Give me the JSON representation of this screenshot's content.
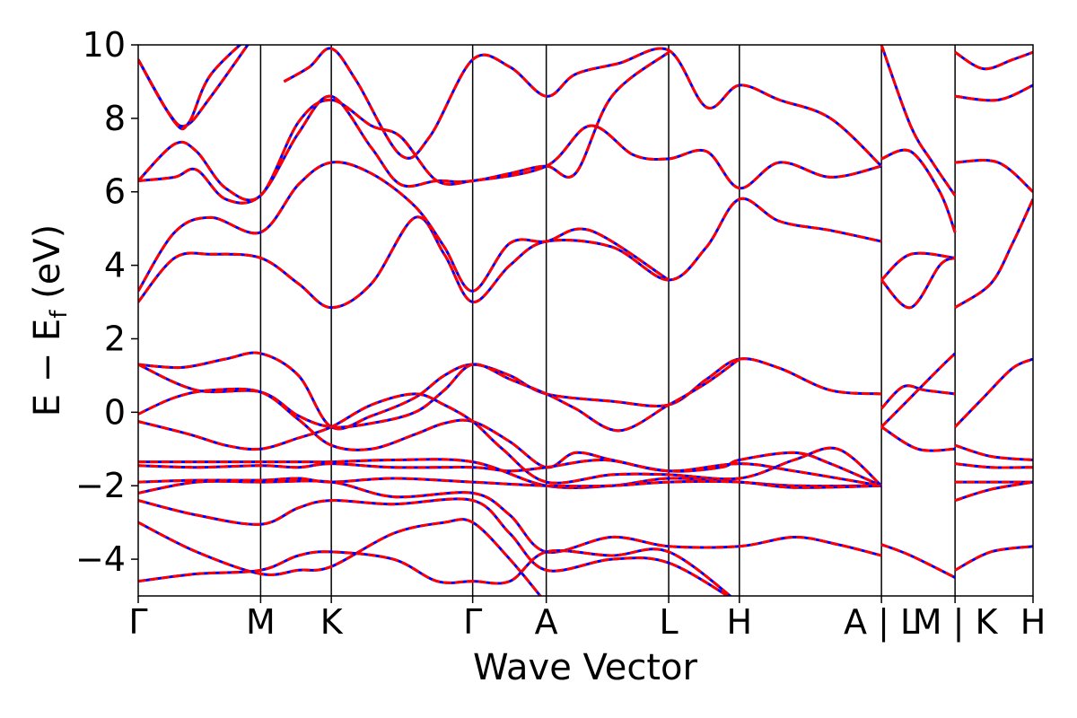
{
  "chart_data": {
    "type": "line",
    "title": "",
    "xlabel": "Wave Vector",
    "ylabel_main": "E − E",
    "ylabel_sub": "f",
    "ylabel_unit": " (eV)",
    "ylim": [
      -5,
      10
    ],
    "yticks": [
      {
        "value": -4,
        "label": "−4"
      },
      {
        "value": -2,
        "label": "−2"
      },
      {
        "value": 0,
        "label": "0"
      },
      {
        "value": 2,
        "label": "2"
      },
      {
        "value": 4,
        "label": "4"
      },
      {
        "value": 6,
        "label": "6"
      },
      {
        "value": 8,
        "label": "8"
      },
      {
        "value": 10,
        "label": "10"
      }
    ],
    "xlim": [
      0,
      12.28
    ],
    "kpath_ticks": [
      {
        "x": 0.0,
        "label": "Γ"
      },
      {
        "x": 1.68,
        "label": "M"
      },
      {
        "x": 2.65,
        "label": "K"
      },
      {
        "x": 4.59,
        "label": "Γ"
      },
      {
        "x": 5.6,
        "label": "A"
      },
      {
        "x": 7.28,
        "label": "L"
      },
      {
        "x": 8.25,
        "label": "H"
      },
      {
        "x": 10.2,
        "label": "A | L"
      },
      {
        "x": 11.21,
        "label": "M | K"
      },
      {
        "x": 12.28,
        "label": "H"
      }
    ],
    "series_style": [
      {
        "color": "#0000ff",
        "dash": "solid",
        "width": 3
      },
      {
        "color": "#ff0000",
        "dash": "dashed",
        "width": 3
      }
    ],
    "bands": [
      [
        [
          0,
          1.3
        ],
        [
          0.6,
          1.22
        ],
        [
          1.2,
          1.45
        ],
        [
          1.68,
          1.6
        ],
        [
          2.2,
          1.0
        ],
        [
          2.65,
          -0.4
        ],
        [
          3.2,
          -0.1
        ],
        [
          3.8,
          0.4
        ],
        [
          4.2,
          1.0
        ],
        [
          4.59,
          1.3
        ],
        [
          5.1,
          1.0
        ],
        [
          5.6,
          0.5
        ],
        [
          6.5,
          0.3
        ],
        [
          7.28,
          0.2
        ],
        [
          7.8,
          0.9
        ],
        [
          8.25,
          1.45
        ],
        [
          8.8,
          1.2
        ],
        [
          9.5,
          0.6
        ],
        [
          10.2,
          0.5
        ]
      ],
      [
        [
          0,
          1.3
        ],
        [
          0.8,
          0.6
        ],
        [
          1.68,
          0.55
        ],
        [
          2.2,
          -0.1
        ],
        [
          2.65,
          -0.4
        ],
        [
          3.2,
          -0.3
        ],
        [
          3.8,
          0.0
        ],
        [
          4.2,
          0.6
        ],
        [
          4.59,
          1.3
        ],
        [
          5.1,
          0.9
        ],
        [
          5.6,
          0.5
        ],
        [
          6.0,
          0.1
        ],
        [
          6.6,
          -0.5
        ],
        [
          7.28,
          0.2
        ],
        [
          7.8,
          0.8
        ],
        [
          8.25,
          1.45
        ]
      ],
      [
        [
          0,
          -0.05
        ],
        [
          0.5,
          0.4
        ],
        [
          1.0,
          0.6
        ],
        [
          1.68,
          0.55
        ],
        [
          2.2,
          -0.2
        ],
        [
          2.65,
          -0.9
        ],
        [
          3.2,
          -1.0
        ],
        [
          3.8,
          -0.6
        ],
        [
          4.2,
          -0.3
        ],
        [
          4.59,
          -0.25
        ],
        [
          5.1,
          -0.8
        ],
        [
          5.6,
          -1.5
        ],
        [
          6.0,
          -1.1
        ],
        [
          6.5,
          -1.3
        ],
        [
          7.28,
          -1.6
        ],
        [
          8.0,
          -1.5
        ],
        [
          8.25,
          -1.3
        ],
        [
          9.0,
          -1.1
        ],
        [
          9.5,
          -1.4
        ],
        [
          10.2,
          -2.0
        ]
      ],
      [
        [
          0,
          -0.25
        ],
        [
          0.7,
          -0.6
        ],
        [
          1.2,
          -0.9
        ],
        [
          1.68,
          -1.0
        ],
        [
          2.2,
          -0.7
        ],
        [
          2.65,
          -0.4
        ],
        [
          3.2,
          0.2
        ],
        [
          3.8,
          0.5
        ],
        [
          4.2,
          0.2
        ],
        [
          4.59,
          -0.25
        ],
        [
          5.0,
          -1.0
        ],
        [
          5.6,
          -1.9
        ],
        [
          6.5,
          -1.7
        ],
        [
          7.28,
          -1.7
        ],
        [
          8.25,
          -1.8
        ],
        [
          9.0,
          -1.3
        ],
        [
          9.6,
          -1.0
        ],
        [
          10.2,
          -2.0
        ]
      ],
      [
        [
          0,
          -1.35
        ],
        [
          0.8,
          -1.35
        ],
        [
          1.68,
          -1.35
        ],
        [
          2.2,
          -1.35
        ],
        [
          2.65,
          -1.35
        ],
        [
          3.5,
          -1.3
        ],
        [
          4.59,
          -1.35
        ],
        [
          5.6,
          -2.0
        ],
        [
          6.5,
          -2.0
        ],
        [
          7.28,
          -1.8
        ],
        [
          8.25,
          -1.9
        ],
        [
          9.0,
          -2.0
        ],
        [
          10.2,
          -2.0
        ]
      ],
      [
        [
          0,
          -1.45
        ],
        [
          0.8,
          -1.5
        ],
        [
          1.68,
          -1.45
        ],
        [
          2.2,
          -1.5
        ],
        [
          2.65,
          -1.4
        ],
        [
          3.5,
          -1.5
        ],
        [
          4.59,
          -1.5
        ],
        [
          5.1,
          -1.6
        ],
        [
          5.6,
          -1.5
        ],
        [
          6.4,
          -1.3
        ],
        [
          7.28,
          -1.6
        ],
        [
          8.25,
          -1.4
        ],
        [
          9.0,
          -1.6
        ],
        [
          10.2,
          -2.0
        ]
      ],
      [
        [
          0,
          -1.9
        ],
        [
          0.8,
          -1.85
        ],
        [
          1.68,
          -1.85
        ],
        [
          2.2,
          -1.8
        ],
        [
          2.65,
          -1.9
        ],
        [
          3.5,
          -1.8
        ],
        [
          4.59,
          -1.9
        ],
        [
          5.6,
          -2.0
        ],
        [
          6.5,
          -2.0
        ],
        [
          7.28,
          -1.9
        ],
        [
          8.25,
          -1.9
        ],
        [
          9.0,
          -2.05
        ],
        [
          10.2,
          -2.0
        ]
      ],
      [
        [
          0,
          -2.2
        ],
        [
          0.8,
          -1.9
        ],
        [
          1.68,
          -1.9
        ],
        [
          2.65,
          -1.9
        ],
        [
          3.5,
          -2.3
        ],
        [
          4.59,
          -2.2
        ],
        [
          5.1,
          -2.8
        ],
        [
          5.6,
          -3.8
        ],
        [
          6.5,
          -3.4
        ],
        [
          7.28,
          -3.65
        ],
        [
          8.25,
          -3.65
        ],
        [
          9.0,
          -3.4
        ],
        [
          9.6,
          -3.6
        ],
        [
          10.2,
          -3.9
        ]
      ],
      [
        [
          0,
          -2.4
        ],
        [
          0.8,
          -2.8
        ],
        [
          1.68,
          -3.05
        ],
        [
          2.2,
          -2.6
        ],
        [
          2.65,
          -2.4
        ],
        [
          3.5,
          -2.5
        ],
        [
          4.59,
          -2.4
        ],
        [
          5.1,
          -3.3
        ],
        [
          5.6,
          -4.3
        ],
        [
          6.5,
          -4.0
        ],
        [
          7.28,
          -4.1
        ],
        [
          8.25,
          -5.2
        ]
      ],
      [
        [
          0,
          -3.0
        ],
        [
          0.8,
          -3.8
        ],
        [
          1.68,
          -4.4
        ],
        [
          2.2,
          -4.3
        ],
        [
          2.65,
          -4.2
        ],
        [
          3.5,
          -3.3
        ],
        [
          4.2,
          -3.0
        ],
        [
          4.59,
          -3.0
        ],
        [
          5.1,
          -4.0
        ],
        [
          5.6,
          -5.2
        ]
      ],
      [
        [
          0,
          -4.6
        ],
        [
          0.8,
          -4.4
        ],
        [
          1.68,
          -4.3
        ],
        [
          2.2,
          -3.9
        ],
        [
          2.65,
          -3.8
        ],
        [
          3.5,
          -4.0
        ],
        [
          4.1,
          -4.6
        ],
        [
          4.59,
          -4.6
        ],
        [
          5.1,
          -4.6
        ],
        [
          5.6,
          -3.8
        ],
        [
          6.5,
          -3.9
        ],
        [
          7.28,
          -3.8
        ],
        [
          8.25,
          -5.2
        ]
      ],
      [
        [
          0,
          3.0
        ],
        [
          0.5,
          4.2
        ],
        [
          1.0,
          4.3
        ],
        [
          1.68,
          4.2
        ],
        [
          2.2,
          3.5
        ],
        [
          2.65,
          2.85
        ],
        [
          3.2,
          3.5
        ],
        [
          3.8,
          5.3
        ],
        [
          4.2,
          4.3
        ],
        [
          4.59,
          3.0
        ],
        [
          5.1,
          4.0
        ],
        [
          5.6,
          4.65
        ],
        [
          6.5,
          4.5
        ],
        [
          7.28,
          3.6
        ],
        [
          7.8,
          4.5
        ],
        [
          8.25,
          5.8
        ],
        [
          8.8,
          5.2
        ],
        [
          9.5,
          4.95
        ],
        [
          10.2,
          4.65
        ]
      ],
      [
        [
          0,
          3.3
        ],
        [
          0.5,
          4.9
        ],
        [
          1.0,
          5.3
        ],
        [
          1.68,
          4.9
        ],
        [
          2.2,
          6.2
        ],
        [
          2.65,
          6.8
        ],
        [
          3.2,
          6.5
        ],
        [
          3.8,
          5.6
        ],
        [
          4.2,
          4.5
        ],
        [
          4.59,
          3.3
        ],
        [
          5.1,
          4.6
        ],
        [
          5.6,
          4.65
        ],
        [
          6.2,
          4.95
        ],
        [
          7.28,
          3.6
        ]
      ],
      [
        [
          0,
          6.3
        ],
        [
          0.5,
          6.4
        ],
        [
          0.8,
          6.6
        ],
        [
          1.2,
          5.8
        ],
        [
          1.68,
          5.9
        ],
        [
          2.2,
          7.6
        ],
        [
          2.65,
          8.6
        ],
        [
          3.2,
          7.2
        ],
        [
          3.6,
          6.2
        ],
        [
          4.1,
          6.3
        ],
        [
          4.59,
          6.3
        ],
        [
          5.6,
          6.7
        ],
        [
          6.2,
          7.8
        ],
        [
          6.8,
          7.0
        ],
        [
          7.28,
          6.9
        ],
        [
          7.8,
          7.1
        ],
        [
          8.25,
          6.1
        ],
        [
          8.8,
          6.8
        ],
        [
          9.5,
          6.4
        ],
        [
          10.2,
          6.7
        ]
      ],
      [
        [
          0,
          6.3
        ],
        [
          0.5,
          7.3
        ],
        [
          0.8,
          7.1
        ],
        [
          1.2,
          6.1
        ],
        [
          1.68,
          5.9
        ],
        [
          2.2,
          7.9
        ],
        [
          2.65,
          8.5
        ],
        [
          3.2,
          7.8
        ],
        [
          3.6,
          7.5
        ],
        [
          4.1,
          6.3
        ],
        [
          4.59,
          6.3
        ],
        [
          5.1,
          6.5
        ],
        [
          5.6,
          6.7
        ],
        [
          6.0,
          6.5
        ],
        [
          6.5,
          8.6
        ],
        [
          7.28,
          9.8
        ]
      ],
      [
        [
          0,
          9.6
        ],
        [
          0.4,
          8.2
        ],
        [
          0.65,
          7.8
        ],
        [
          1.0,
          8.6
        ],
        [
          1.68,
          10.5
        ]
      ],
      [
        [
          0,
          9.6
        ],
        [
          0.5,
          7.9
        ],
        [
          0.7,
          7.9
        ],
        [
          1.0,
          9.2
        ],
        [
          1.68,
          10.5
        ]
      ],
      [
        [
          2.0,
          9.0
        ],
        [
          2.35,
          9.4
        ],
        [
          2.65,
          9.9
        ],
        [
          3.0,
          9.0
        ],
        [
          3.6,
          7.0
        ],
        [
          4.0,
          7.5
        ],
        [
          4.59,
          9.6
        ],
        [
          5.1,
          9.4
        ],
        [
          5.6,
          8.6
        ],
        [
          6.0,
          9.2
        ],
        [
          6.6,
          9.5
        ],
        [
          7.28,
          9.85
        ],
        [
          7.8,
          8.3
        ],
        [
          8.25,
          8.9
        ],
        [
          8.8,
          8.5
        ],
        [
          9.5,
          8.0
        ],
        [
          10.2,
          6.7
        ]
      ]
    ],
    "bands_right": [
      [
        [
          10.2,
          0.1
        ],
        [
          10.5,
          0.7
        ],
        [
          10.8,
          0.6
        ],
        [
          11.21,
          0.5
        ]
      ],
      [
        [
          10.2,
          -0.4
        ],
        [
          10.6,
          0.4
        ],
        [
          11.0,
          1.2
        ],
        [
          11.21,
          1.6
        ]
      ],
      [
        [
          10.2,
          -0.4
        ],
        [
          10.7,
          -1.0
        ],
        [
          11.21,
          -1.0
        ]
      ],
      [
        [
          10.2,
          3.6
        ],
        [
          10.6,
          2.85
        ],
        [
          11.0,
          4.0
        ],
        [
          11.21,
          4.2
        ]
      ],
      [
        [
          10.2,
          3.6
        ],
        [
          10.6,
          4.3
        ],
        [
          11.21,
          4.2
        ]
      ],
      [
        [
          10.2,
          6.9
        ],
        [
          10.6,
          7.1
        ],
        [
          11.0,
          6.0
        ],
        [
          11.21,
          4.9
        ]
      ],
      [
        [
          10.2,
          10.0
        ],
        [
          10.6,
          7.8
        ],
        [
          10.9,
          6.8
        ],
        [
          11.21,
          5.9
        ]
      ],
      [
        [
          10.2,
          -3.6
        ],
        [
          10.6,
          -3.9
        ],
        [
          11.21,
          -4.5
        ]
      ],
      [
        [
          11.21,
          -0.4
        ],
        [
          11.6,
          0.4
        ],
        [
          12.0,
          1.2
        ],
        [
          12.28,
          1.45
        ]
      ],
      [
        [
          11.21,
          -0.9
        ],
        [
          11.7,
          -1.2
        ],
        [
          12.28,
          -1.3
        ]
      ],
      [
        [
          11.21,
          -1.4
        ],
        [
          11.7,
          -1.5
        ],
        [
          12.28,
          -1.5
        ]
      ],
      [
        [
          11.21,
          -1.9
        ],
        [
          11.7,
          -1.9
        ],
        [
          12.28,
          -1.9
        ]
      ],
      [
        [
          11.21,
          -2.4
        ],
        [
          11.7,
          -2.1
        ],
        [
          12.28,
          -1.9
        ]
      ],
      [
        [
          11.21,
          -4.3
        ],
        [
          11.7,
          -3.8
        ],
        [
          12.28,
          -3.65
        ]
      ],
      [
        [
          11.21,
          2.85
        ],
        [
          11.7,
          3.5
        ],
        [
          12.0,
          4.6
        ],
        [
          12.28,
          5.8
        ]
      ],
      [
        [
          11.21,
          6.8
        ],
        [
          11.8,
          6.8
        ],
        [
          12.28,
          6.0
        ]
      ],
      [
        [
          11.21,
          8.6
        ],
        [
          11.8,
          8.5
        ],
        [
          12.28,
          8.9
        ]
      ],
      [
        [
          11.21,
          9.8
        ],
        [
          11.6,
          9.35
        ],
        [
          12.0,
          9.6
        ],
        [
          12.28,
          9.8
        ]
      ]
    ]
  }
}
